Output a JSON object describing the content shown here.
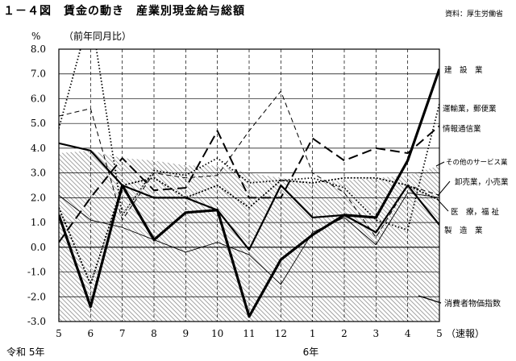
{
  "title": "１－４図　賃金の動き　産業別現金給与総額",
  "source": "資料：厚生労働省",
  "chart_data": {
    "type": "line",
    "title": "１－４図　賃金の動き　産業別現金給与総額",
    "ylabel_unit": "%",
    "ylabel": "（前年同月比）",
    "ylim": [
      -3.0,
      8.0
    ],
    "yticks": [
      "8.0",
      "7.0",
      "6.0",
      "5.0",
      "4.0",
      "3.0",
      "2.0",
      "1.0",
      "0.0",
      "-1.0",
      "-2.0",
      "-3.0"
    ],
    "categories": [
      "5",
      "6",
      "7",
      "8",
      "9",
      "10",
      "11",
      "12",
      "1",
      "2",
      "3",
      "4",
      "5"
    ],
    "x_last_note": "（速報）",
    "year_labels": [
      {
        "text": "令和 5年",
        "at_index": 0
      },
      {
        "text": "6年",
        "at_index": 8
      }
    ],
    "grid": "vertical dashed, horizontal solid",
    "series": [
      {
        "name": "建　設　業",
        "style": "solid-thick",
        "values": [
          1.3,
          -2.4,
          2.5,
          0.3,
          1.4,
          1.5,
          -2.8,
          -0.5,
          0.5,
          1.3,
          1.2,
          3.5,
          7.2
        ]
      },
      {
        "name": "運輸業，郵便業",
        "style": "dotted",
        "values": [
          4.8,
          9.5,
          1.3,
          3.1,
          2.9,
          3.6,
          2.6,
          2.7,
          2.8,
          2.4,
          1.1,
          0.7,
          5.8
        ]
      },
      {
        "name": "情報通信業",
        "style": "dashed-long",
        "values": [
          0.2,
          2.0,
          3.6,
          2.3,
          2.4,
          4.7,
          2.0,
          2.0,
          4.4,
          3.5,
          4.0,
          3.8,
          4.9
        ]
      },
      {
        "name": "その他のサービス業",
        "style": "dashed-thin",
        "values": [
          5.3,
          5.6,
          1.1,
          3.0,
          2.8,
          2.9,
          4.7,
          6.3,
          3.0,
          2.2,
          0.4,
          2.5,
          2.1
        ]
      },
      {
        "name": "卸売業，小売業",
        "style": "dash-dot",
        "values": [
          1.6,
          -1.5,
          2.5,
          2.8,
          2.0,
          2.5,
          1.6,
          2.7,
          2.6,
          2.8,
          2.8,
          2.5,
          1.9
        ]
      },
      {
        "name": "医　療，福 祉",
        "style": "solid-medium",
        "values": [
          4.2,
          3.9,
          2.5,
          2.0,
          2.0,
          1.5,
          -0.1,
          2.5,
          1.2,
          1.3,
          0.6,
          2.5,
          0.9
        ]
      },
      {
        "name": "製　造　業",
        "style": "solid-thin",
        "values": [
          2.1,
          1.1,
          0.8,
          0.3,
          -0.2,
          0.2,
          -0.3,
          -1.5,
          0.6,
          1.2,
          0.1,
          2.2,
          2.0
        ]
      }
    ],
    "area": {
      "name": "消費者物価指数",
      "values": [
        3.8,
        3.9,
        3.6,
        3.5,
        3.3,
        3.3,
        3.0,
        2.8,
        2.6,
        2.7,
        2.8,
        2.9,
        3.3
      ]
    }
  }
}
